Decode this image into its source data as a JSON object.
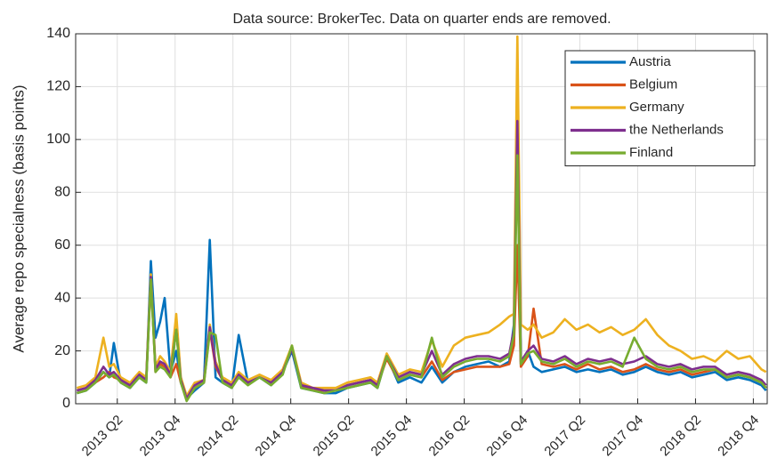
{
  "chart_data": {
    "type": "line",
    "title": "Data source: BrokerTec. Data on quarter ends are removed.",
    "y_label": "Average repo specialness (basis points)",
    "x": [
      2012.9,
      2012.98,
      2013.06,
      2013.13,
      2013.18,
      2013.22,
      2013.28,
      2013.36,
      2013.44,
      2013.5,
      2013.54,
      2013.58,
      2013.62,
      2013.66,
      2013.71,
      2013.76,
      2013.8,
      2013.85,
      2013.92,
      2014.0,
      2014.05,
      2014.1,
      2014.16,
      2014.24,
      2014.3,
      2014.38,
      2014.48,
      2014.58,
      2014.68,
      2014.76,
      2014.84,
      2014.94,
      2015.04,
      2015.14,
      2015.24,
      2015.34,
      2015.44,
      2015.5,
      2015.58,
      2015.68,
      2015.78,
      2015.88,
      2015.97,
      2016.06,
      2016.16,
      2016.26,
      2016.36,
      2016.46,
      2016.56,
      2016.64,
      2016.68,
      2016.71,
      2016.74,
      2016.8,
      2016.85,
      2016.92,
      2017.02,
      2017.12,
      2017.22,
      2017.32,
      2017.42,
      2017.52,
      2017.62,
      2017.72,
      2017.82,
      2017.92,
      2018.02,
      2018.12,
      2018.22,
      2018.32,
      2018.42,
      2018.52,
      2018.62,
      2018.72,
      2018.82,
      2018.86
    ],
    "series": [
      {
        "name": "Austria",
        "color": "#0072bd",
        "values": [
          4,
          5,
          8,
          12,
          10,
          23,
          8,
          6,
          10,
          8,
          54,
          25,
          31,
          40,
          12,
          20,
          8,
          2,
          5,
          8,
          62,
          10,
          8,
          6,
          26,
          8,
          10,
          7,
          12,
          20,
          6,
          5,
          4,
          4,
          6,
          7,
          8,
          6,
          18,
          8,
          10,
          8,
          14,
          8,
          12,
          14,
          15,
          16,
          14,
          16,
          30,
          100,
          15,
          20,
          14,
          12,
          13,
          14,
          12,
          13,
          12,
          13,
          11,
          12,
          14,
          12,
          11,
          12,
          10,
          11,
          12,
          9,
          10,
          9,
          7,
          5
        ]
      },
      {
        "name": "Belgium",
        "color": "#d95319",
        "values": [
          5,
          6,
          8,
          10,
          12,
          10,
          9,
          7,
          10,
          9,
          48,
          12,
          15,
          14,
          10,
          15,
          8,
          2,
          6,
          8,
          28,
          14,
          9,
          7,
          10,
          8,
          10,
          8,
          12,
          21,
          7,
          5,
          5,
          5,
          7,
          8,
          9,
          7,
          17,
          9,
          11,
          10,
          16,
          9,
          12,
          13,
          14,
          14,
          14,
          15,
          22,
          60,
          14,
          18,
          36,
          15,
          14,
          15,
          13,
          15,
          13,
          14,
          12,
          13,
          15,
          13,
          12,
          13,
          11,
          12,
          13,
          10,
          11,
          10,
          8,
          6
        ]
      },
      {
        "name": "Germany",
        "color": "#edb120",
        "values": [
          6,
          7,
          10,
          25,
          14,
          15,
          10,
          8,
          12,
          10,
          49,
          14,
          18,
          16,
          12,
          34,
          10,
          3,
          8,
          9,
          30,
          16,
          10,
          8,
          12,
          9,
          11,
          9,
          13,
          22,
          8,
          6,
          6,
          6,
          8,
          9,
          10,
          8,
          19,
          11,
          13,
          12,
          24,
          14,
          22,
          25,
          26,
          27,
          30,
          33,
          34,
          139,
          30,
          28,
          30,
          25,
          27,
          32,
          28,
          30,
          27,
          29,
          26,
          28,
          32,
          26,
          22,
          20,
          17,
          18,
          16,
          20,
          17,
          18,
          13,
          12
        ]
      },
      {
        "name": "the Netherlands",
        "color": "#7e2f8e",
        "values": [
          5,
          6,
          9,
          14,
          11,
          12,
          9,
          7,
          11,
          9,
          48,
          13,
          16,
          15,
          11,
          28,
          9,
          2,
          7,
          9,
          29,
          15,
          9,
          7,
          11,
          8,
          10,
          8,
          12,
          21,
          7,
          6,
          5,
          5,
          7,
          8,
          9,
          7,
          18,
          10,
          12,
          11,
          20,
          11,
          15,
          17,
          18,
          18,
          17,
          19,
          28,
          107,
          16,
          20,
          22,
          17,
          16,
          18,
          15,
          17,
          16,
          17,
          15,
          16,
          18,
          15,
          14,
          15,
          13,
          14,
          14,
          11,
          12,
          11,
          9,
          7
        ]
      },
      {
        "name": "Finland",
        "color": "#77ac30",
        "values": [
          4,
          5,
          8,
          12,
          10,
          11,
          8,
          6,
          10,
          8,
          47,
          12,
          14,
          13,
          10,
          28,
          8,
          1,
          6,
          8,
          27,
          26,
          8,
          6,
          10,
          7,
          10,
          7,
          11,
          22,
          6,
          5,
          4,
          5,
          6,
          7,
          8,
          6,
          18,
          9,
          11,
          10,
          25,
          10,
          14,
          16,
          17,
          17,
          16,
          18,
          26,
          94,
          15,
          19,
          20,
          16,
          15,
          17,
          14,
          16,
          15,
          16,
          14,
          25,
          17,
          14,
          13,
          14,
          12,
          13,
          13,
          10,
          11,
          10,
          8,
          6
        ]
      }
    ],
    "xlim": [
      2012.89,
      2018.87
    ],
    "xticks": [
      {
        "value": 2013.25,
        "label": "2013 Q2"
      },
      {
        "value": 2013.75,
        "label": "2013 Q4"
      },
      {
        "value": 2014.25,
        "label": "2014 Q2"
      },
      {
        "value": 2014.75,
        "label": "2014 Q4"
      },
      {
        "value": 2015.25,
        "label": "2015 Q2"
      },
      {
        "value": 2015.75,
        "label": "2015 Q4"
      },
      {
        "value": 2016.25,
        "label": "2016 Q2"
      },
      {
        "value": 2016.75,
        "label": "2016 Q4"
      },
      {
        "value": 2017.25,
        "label": "2017 Q2"
      },
      {
        "value": 2017.75,
        "label": "2017 Q4"
      },
      {
        "value": 2018.25,
        "label": "2018 Q2"
      },
      {
        "value": 2018.75,
        "label": "2018 Q4"
      }
    ],
    "ylim": [
      0,
      140
    ],
    "yticks": [
      0,
      20,
      40,
      60,
      80,
      100,
      120,
      140
    ],
    "grid": true,
    "legend": "upper right"
  }
}
